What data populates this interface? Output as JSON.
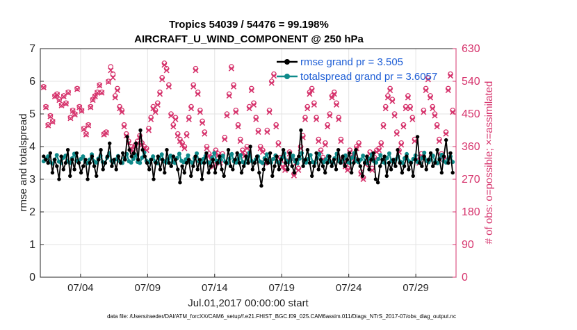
{
  "chart_data": {
    "type": "line",
    "title_line1": "Tropics 54039 / 54476 = 99.198%",
    "title_line2": "AIRCRAFT_U_WIND_COMPONENT @ 250 hPa",
    "ylabel_left": "rmse and totalspread",
    "ylabel_right": "# of obs: o=possible; ×=assimilated",
    "xlabel": "Jul.01,2017 00:00:00 start",
    "footer": "data file: /Users/raeder/DAI/ATM_forcXX/CAM6_setup/f.e21.FHIST_BGC.f09_025.CAM6assim.011/Diags_NTrS_2017-07/obs_diag_output.nc",
    "ylim_left": [
      0,
      7
    ],
    "yticks_left": [
      "0",
      "1",
      "2",
      "3",
      "4",
      "5",
      "6",
      "7"
    ],
    "ylim_right": [
      0,
      630
    ],
    "yticks_right": [
      "0",
      "90",
      "180",
      "270",
      "360",
      "450",
      "540",
      "630"
    ],
    "xlim": [
      1,
      32
    ],
    "xticks": [
      {
        "day": 4,
        "label": "07/04"
      },
      {
        "day": 9,
        "label": "07/09"
      },
      {
        "day": 14,
        "label": "07/14"
      },
      {
        "day": 19,
        "label": "07/19"
      },
      {
        "day": 24,
        "label": "07/24"
      },
      {
        "day": 29,
        "label": "07/29"
      }
    ],
    "legend": [
      {
        "label": "rmse grand pr = 3.505",
        "color": "#000000"
      },
      {
        "label": "totalspread grand pr = 3.6057",
        "color": "#0e8a8a"
      }
    ],
    "series": [
      {
        "name": "rmse",
        "color": "#000000",
        "values": [
          3.7,
          3.6,
          3.5,
          3.8,
          3.2,
          3.6,
          3.4,
          3.0,
          3.7,
          3.3,
          3.5,
          3.9,
          3.1,
          3.6,
          3.3,
          3.8,
          3.5,
          3.2,
          3.4,
          3.6,
          3.0,
          3.5,
          3.7,
          3.4,
          3.1,
          3.6,
          3.9,
          3.3,
          3.5,
          3.7,
          4.1,
          3.4,
          3.6,
          3.3,
          3.7,
          3.5,
          3.8,
          3.6,
          4.3,
          3.9,
          3.7,
          3.8,
          4.1,
          3.6,
          4.5,
          3.9,
          3.7,
          3.5,
          3.3,
          3.6,
          3.0,
          3.5,
          3.7,
          3.3,
          3.6,
          3.2,
          3.9,
          3.5,
          3.4,
          3.7,
          3.6,
          3.3,
          2.9,
          3.4,
          3.2,
          3.5,
          3.6,
          3.1,
          3.4,
          3.7,
          3.3,
          3.6,
          3.0,
          3.5,
          3.8,
          3.2,
          3.4,
          3.6,
          3.2,
          3.5,
          3.7,
          3.3,
          3.1,
          3.5,
          3.9,
          3.4,
          3.3,
          3.6,
          3.8,
          3.5,
          3.2,
          3.4,
          3.7,
          3.5,
          4.0,
          3.3,
          3.5,
          3.7,
          3.2,
          2.8,
          3.3,
          3.6,
          3.5,
          3.8,
          3.1,
          3.4,
          3.7,
          3.3,
          3.6,
          3.9,
          3.5,
          3.3,
          3.8,
          3.4,
          3.2,
          3.6,
          3.7,
          4.5,
          3.4,
          3.6,
          3.9,
          3.5,
          3.1,
          3.4,
          3.8,
          3.3,
          3.6,
          3.4,
          3.2,
          3.5,
          3.7,
          3.4,
          3.6,
          3.3,
          3.9,
          3.5,
          3.7,
          3.4,
          3.6,
          3.8,
          3.2,
          3.5,
          3.9,
          3.6,
          3.4,
          3.1,
          3.5,
          3.7,
          3.3,
          3.6,
          3.8,
          3.0,
          2.9,
          3.4,
          3.6,
          3.7,
          3.1,
          3.5,
          3.3,
          3.6,
          3.4,
          3.9,
          3.5,
          3.2,
          3.4,
          3.7,
          3.3,
          3.5,
          3.1,
          3.6,
          4.3,
          3.5,
          3.4,
          3.7,
          3.3,
          3.6,
          3.8,
          3.4,
          3.5,
          3.9,
          3.6,
          3.2,
          3.7,
          4.2,
          3.5,
          3.8,
          3.2
        ]
      },
      {
        "name": "totalspread",
        "color": "#0e8a8a",
        "values": [
          3.55,
          3.62,
          3.7,
          3.52,
          3.48,
          3.6,
          3.74,
          3.54,
          3.5,
          3.66,
          3.72,
          3.55,
          3.5,
          3.64,
          3.78,
          3.56,
          3.52,
          3.62,
          3.7,
          3.54,
          3.49,
          3.6,
          3.76,
          3.55,
          3.51,
          3.63,
          3.72,
          3.53,
          3.5,
          3.66,
          3.8,
          3.56,
          3.52,
          3.61,
          3.71,
          3.54,
          3.5,
          3.64,
          3.77,
          3.55,
          3.51,
          3.62,
          3.74,
          3.53,
          3.5,
          3.66,
          3.82,
          3.56,
          3.52,
          3.6,
          3.7,
          3.54,
          3.49,
          3.63,
          3.76,
          3.55,
          3.51,
          3.62,
          3.72,
          3.53,
          3.5,
          3.65,
          3.78,
          3.56,
          3.52,
          3.61,
          3.73,
          3.54,
          3.5,
          3.64,
          3.79,
          3.55,
          3.51,
          3.62,
          3.71,
          3.53,
          3.5,
          3.66,
          3.8,
          3.56,
          3.52,
          3.6,
          3.72,
          3.54,
          3.49,
          3.63,
          3.77,
          3.55,
          3.51,
          3.62,
          3.74,
          3.53,
          3.5,
          3.65,
          3.81,
          3.56,
          3.52,
          3.61,
          3.7,
          3.54,
          3.5,
          3.64,
          3.76,
          3.55,
          3.51,
          3.62,
          3.73,
          3.53,
          3.5,
          3.66,
          3.79,
          3.56,
          3.52,
          3.6,
          3.72,
          3.54,
          3.49,
          3.63,
          3.8,
          3.55,
          3.51,
          3.62,
          3.74,
          3.53,
          3.5,
          3.65,
          3.77,
          3.56,
          3.52,
          3.61,
          3.71,
          3.54,
          3.5,
          3.64,
          3.78,
          3.55,
          3.51,
          3.62,
          3.73,
          3.53,
          3.5,
          3.66,
          3.8,
          3.56,
          3.52,
          3.6,
          3.72,
          3.54,
          3.49,
          3.63,
          3.76,
          3.55,
          3.51,
          3.62,
          3.74,
          3.53,
          3.5,
          3.65,
          3.79,
          3.56,
          3.52,
          3.61,
          3.7,
          3.54,
          3.5,
          3.64,
          3.77,
          3.55,
          3.51,
          3.62,
          3.73,
          3.53,
          3.5,
          3.66,
          3.81,
          3.56,
          3.52,
          3.6,
          3.72,
          3.54,
          3.49,
          3.63,
          3.75,
          3.55,
          3.51,
          3.62,
          3.7,
          3.53
        ]
      },
      {
        "name": "obs_possible",
        "color": "#d6336c",
        "marker": "o",
        "values": [
          525,
          470,
          420,
          445,
          430,
          500,
          505,
          490,
          475,
          500,
          480,
          510,
          440,
          460,
          450,
          520,
          470,
          460,
          410,
          395,
          420,
          470,
          490,
          500,
          510,
          530,
          510,
          395,
          400,
          540,
          580,
          560,
          500,
          520,
          470,
          460,
          420,
          395,
          375,
          360,
          350,
          365,
          375,
          390,
          370,
          360,
          355,
          410,
          440,
          470,
          460,
          480,
          510,
          550,
          590,
          575,
          530,
          450,
          420,
          440,
          395,
          380,
          370,
          360,
          395,
          440,
          470,
          530,
          575,
          510,
          460,
          430,
          400,
          360,
          340,
          330,
          310,
          350,
          340,
          320,
          340,
          385,
          450,
          505,
          580,
          530,
          460,
          420,
          380,
          350,
          340,
          360,
          470,
          520,
          480,
          440,
          405,
          360,
          350,
          320,
          405,
          460,
          540,
          560,
          420,
          370,
          330,
          310,
          300,
          320,
          345,
          330,
          285,
          320,
          300,
          360,
          390,
          440,
          470,
          510,
          520,
          480,
          440,
          380,
          350,
          330,
          370,
          420,
          450,
          500,
          510,
          480,
          440,
          380,
          330,
          310,
          300,
          350,
          330,
          340,
          360,
          370,
          290,
          275,
          315,
          320,
          345,
          300,
          330,
          350,
          355,
          370,
          420,
          470,
          500,
          520,
          490,
          450,
          400,
          350,
          370,
          420,
          470,
          500,
          470,
          440,
          380,
          330,
          320,
          340,
          460,
          520,
          550,
          500,
          470,
          450,
          420,
          380,
          340,
          330,
          400,
          520,
          560,
          460
        ]
      },
      {
        "name": "obs_assimilated",
        "color": "#d6336c",
        "marker": "x",
        "values": [
          523,
          468,
          418,
          443,
          428,
          498,
          503,
          488,
          473,
          498,
          478,
          508,
          438,
          458,
          448,
          518,
          468,
          458,
          408,
          393,
          418,
          468,
          488,
          498,
          508,
          528,
          508,
          393,
          398,
          538,
          570,
          550,
          495,
          515,
          465,
          455,
          415,
          390,
          370,
          355,
          345,
          360,
          370,
          385,
          365,
          355,
          350,
          405,
          435,
          465,
          455,
          475,
          505,
          545,
          585,
          570,
          525,
          445,
          415,
          435,
          390,
          375,
          365,
          355,
          390,
          435,
          465,
          525,
          570,
          505,
          455,
          425,
          395,
          355,
          335,
          325,
          305,
          345,
          335,
          315,
          335,
          380,
          445,
          500,
          575,
          525,
          455,
          415,
          375,
          345,
          335,
          355,
          465,
          515,
          475,
          435,
          400,
          355,
          345,
          315,
          400,
          455,
          535,
          555,
          415,
          365,
          325,
          305,
          295,
          315,
          340,
          325,
          280,
          315,
          295,
          355,
          385,
          435,
          465,
          505,
          515,
          475,
          435,
          375,
          345,
          325,
          365,
          415,
          445,
          495,
          505,
          475,
          435,
          375,
          325,
          305,
          295,
          345,
          325,
          335,
          355,
          365,
          285,
          270,
          310,
          315,
          340,
          295,
          325,
          345,
          350,
          365,
          415,
          465,
          495,
          515,
          485,
          445,
          395,
          345,
          365,
          415,
          465,
          495,
          465,
          435,
          375,
          325,
          315,
          335,
          455,
          515,
          545,
          495,
          465,
          445,
          415,
          375,
          335,
          325,
          395,
          515,
          555,
          455
        ]
      }
    ]
  }
}
